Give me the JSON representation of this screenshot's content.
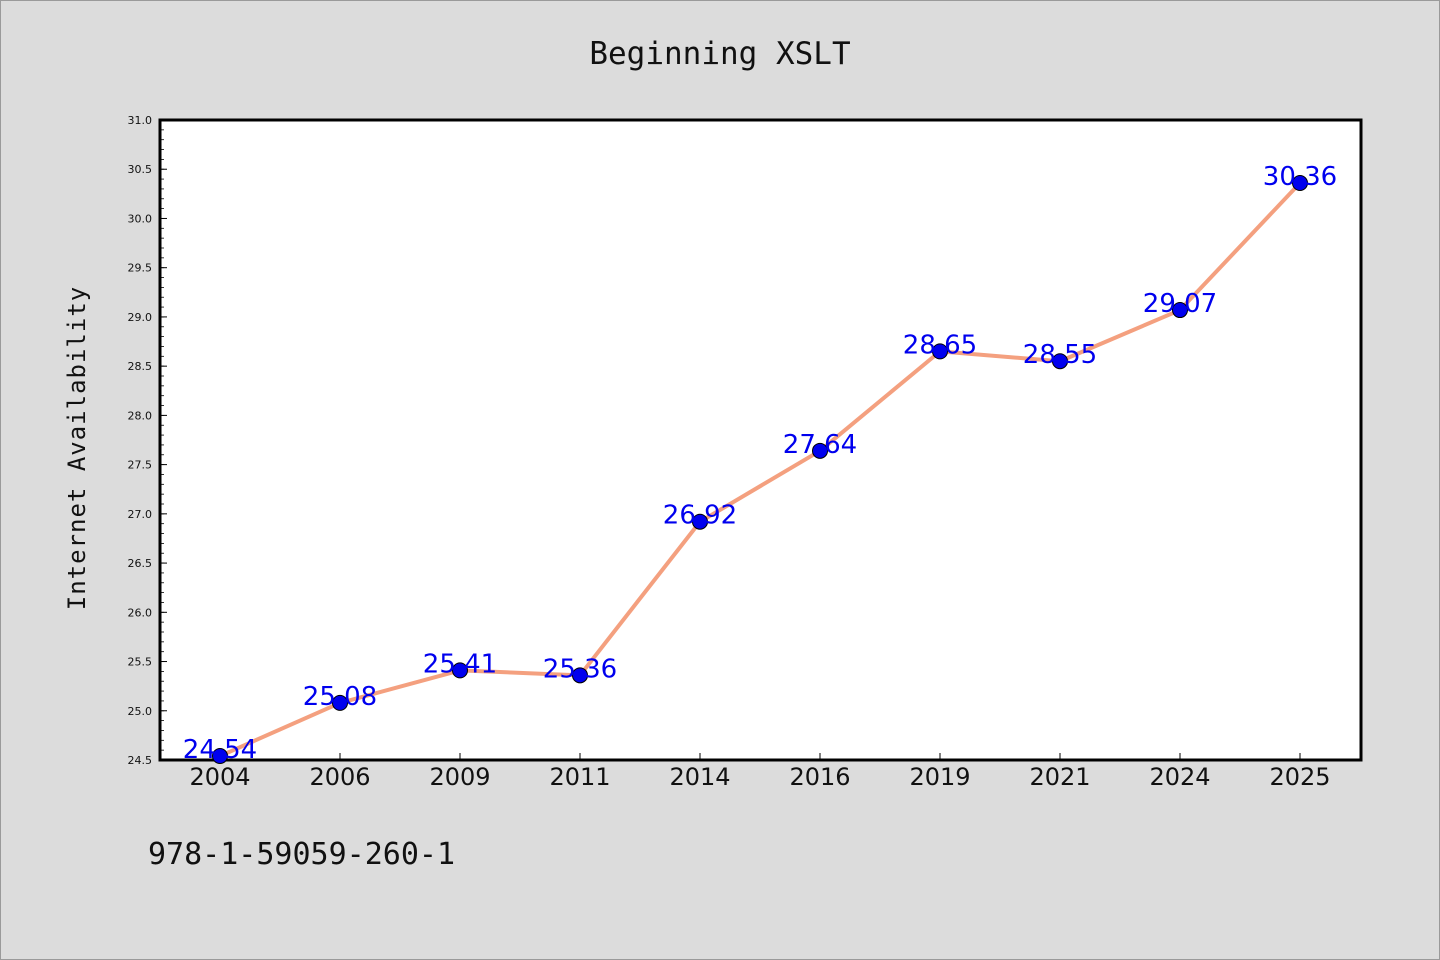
{
  "chart_data": {
    "type": "line",
    "title": "Beginning XSLT",
    "xlabel": "",
    "ylabel": "Internet Availability",
    "categories": [
      "2004",
      "2006",
      "2009",
      "2011",
      "2014",
      "2016",
      "2019",
      "2021",
      "2024",
      "2025"
    ],
    "values": [
      24.54,
      25.08,
      25.41,
      25.36,
      26.92,
      27.64,
      28.65,
      28.55,
      29.07,
      30.36
    ],
    "data_labels": [
      "24.54",
      "25.08",
      "25.41",
      "25.36",
      "26.92",
      "27.64",
      "28.65",
      "28.55",
      "29.07",
      "30.36"
    ],
    "ylim": [
      24.5,
      31.0
    ],
    "yticks": [
      "24.5",
      "25.0",
      "25.5",
      "26.0",
      "26.5",
      "27.0",
      "27.5",
      "28.0",
      "28.5",
      "29.0",
      "29.5",
      "30.0",
      "30.5",
      "31.0"
    ],
    "grid": false,
    "line_color": "#f4a07f",
    "marker_color": "#0000ee",
    "label_color": "#0000ee",
    "background_color": "#dcdcdc",
    "plot_background": "#ffffff"
  },
  "footnote": "978-1-59059-260-1"
}
